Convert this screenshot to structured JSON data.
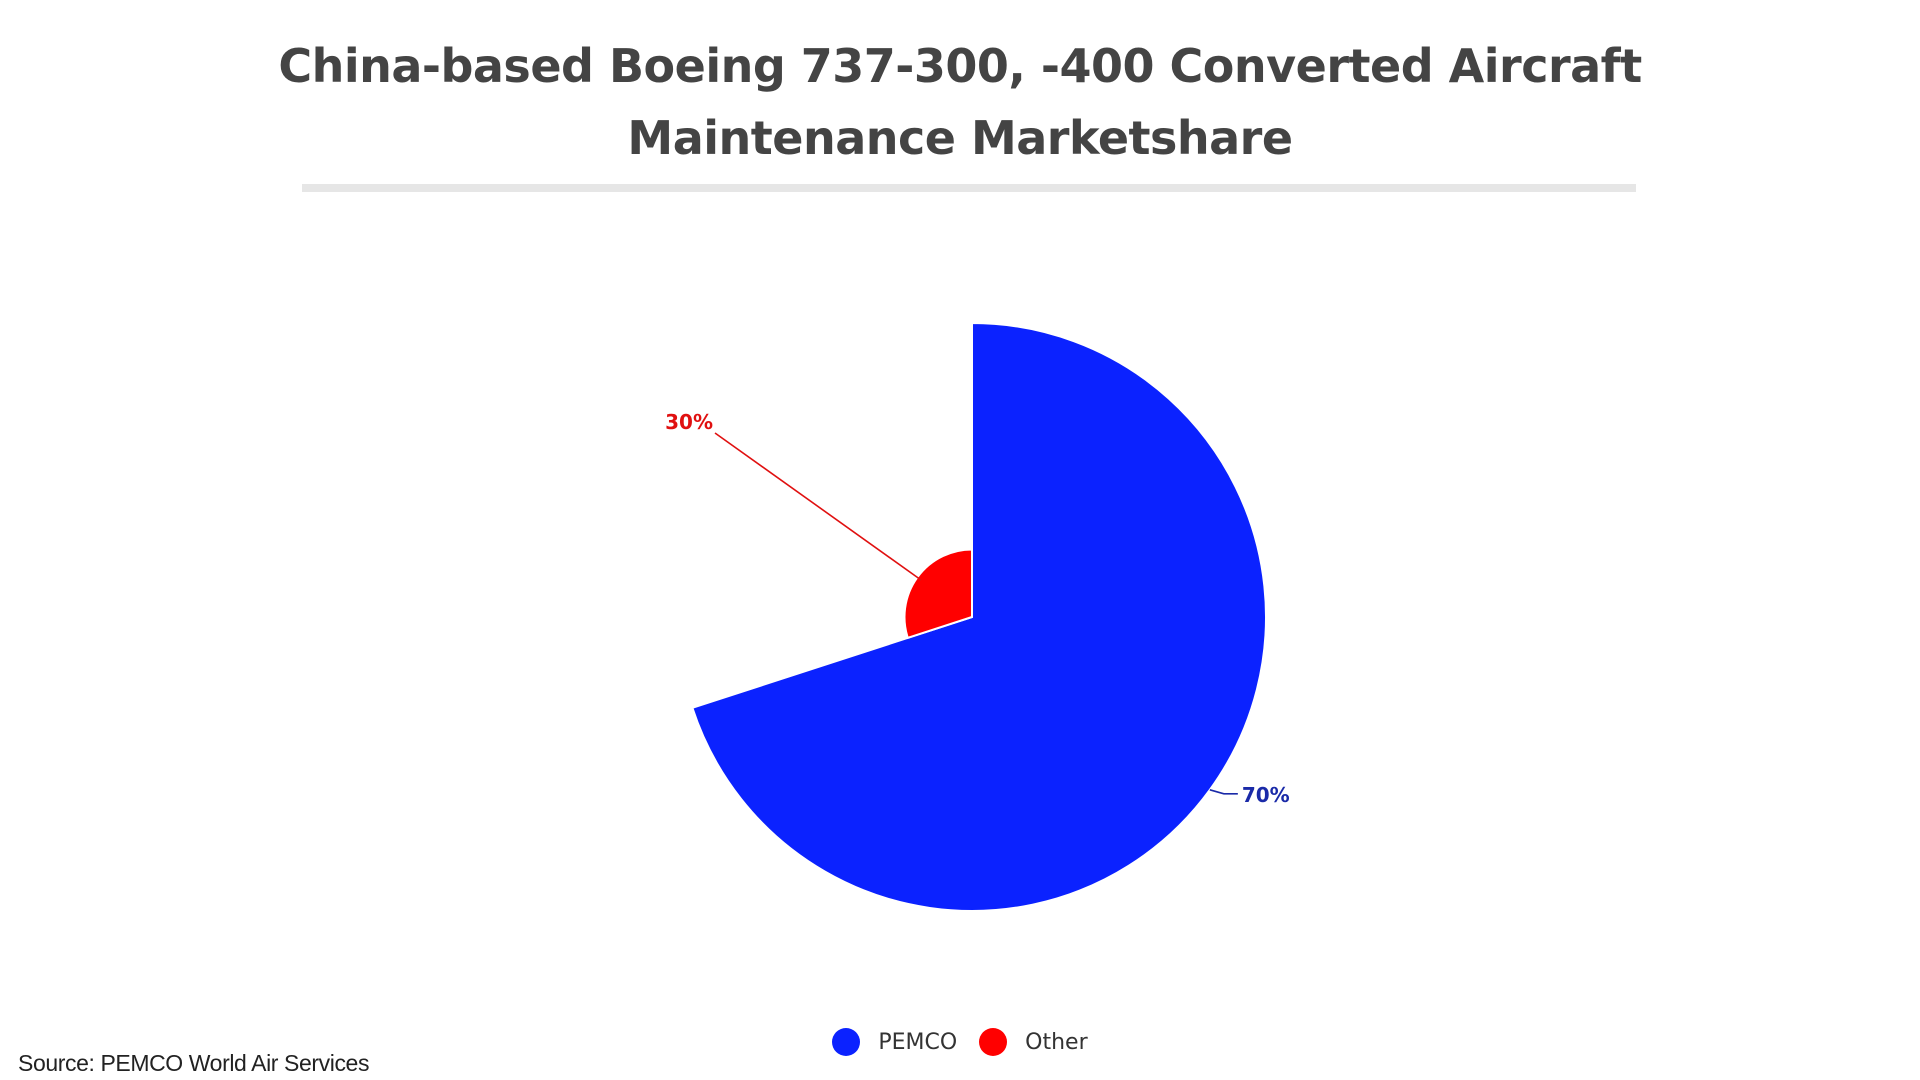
{
  "title": "China-based Boeing 737-300, -400 Converted Aircraft Maintenance Marketshare",
  "source": "Source: PEMCO World Air Services",
  "chart_data": {
    "type": "pie",
    "variant": "variable-radius (nightingale) pie, slices drawn clockwise from 12 o'clock",
    "title": "China-based Boeing 737-300, -400 Converted Aircraft Maintenance Marketshare",
    "series": [
      {
        "name": "PEMCO",
        "value": 70,
        "label": "70%",
        "color": "#0b22ff",
        "label_color": "#1a2aa8"
      },
      {
        "name": "Other",
        "value": 30,
        "label": "30%",
        "color": "#ff0000",
        "label_color": "#e01010"
      }
    ],
    "legend": {
      "position": "bottom",
      "items": [
        {
          "name": "PEMCO",
          "color": "#0b22ff"
        },
        {
          "name": "Other",
          "color": "#ff0000"
        }
      ]
    }
  }
}
